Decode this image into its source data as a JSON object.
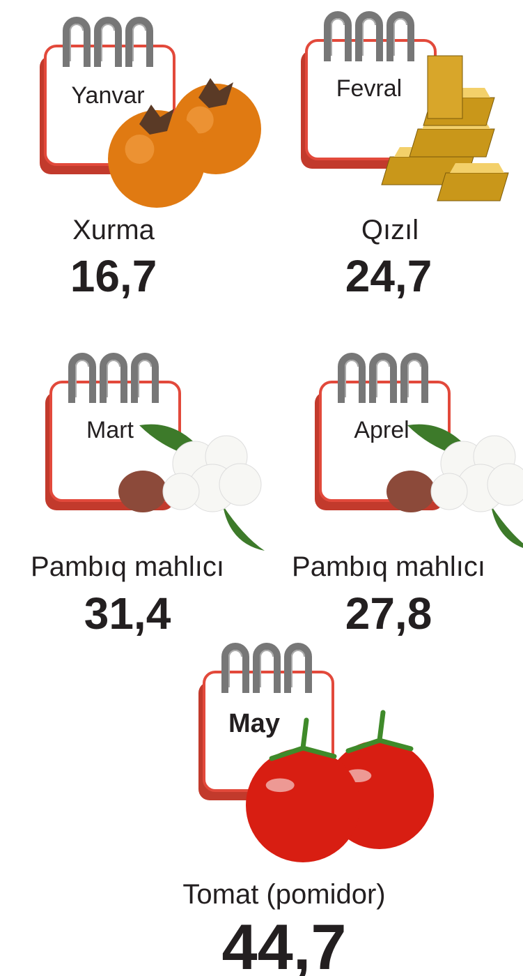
{
  "items": [
    {
      "month": "Yanvar",
      "product": "Xurma",
      "value": "16,7"
    },
    {
      "month": "Fevral",
      "product": "Qızıl",
      "value": "24,7"
    },
    {
      "month": "Mart",
      "product": "Pambıq mahlıcı",
      "value": "31,4"
    },
    {
      "month": "Aprel",
      "product": "Pambıq mahlıcı",
      "value": "27,8"
    },
    {
      "month": "May",
      "product": "Tomat (pomidor)",
      "value": "44,7"
    }
  ]
}
